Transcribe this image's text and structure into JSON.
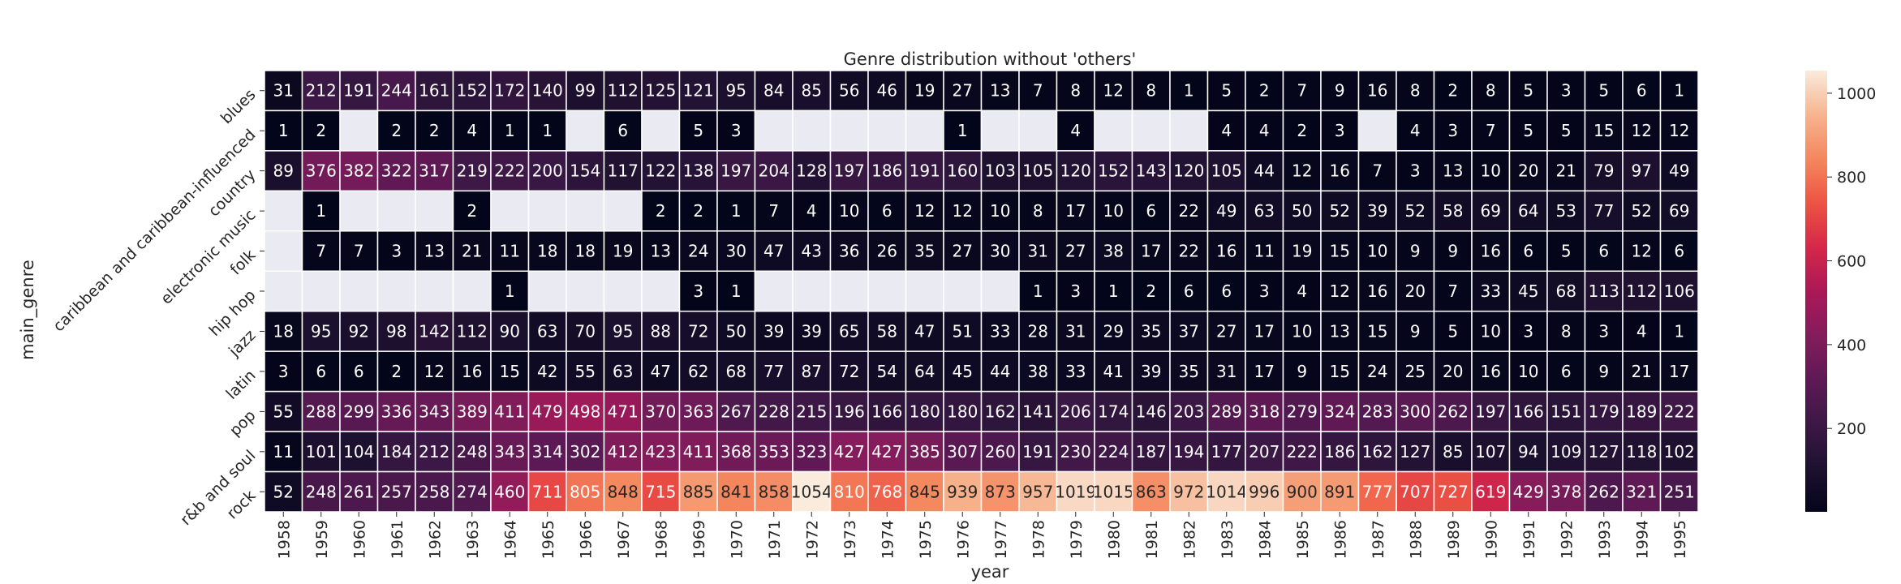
{
  "chart_data": {
    "type": "heatmap",
    "title": "Genre distribution without 'others'",
    "xlabel": "year",
    "ylabel": "main_genre",
    "x": [
      "1958",
      "1959",
      "1960",
      "1961",
      "1962",
      "1963",
      "1964",
      "1965",
      "1966",
      "1967",
      "1968",
      "1969",
      "1970",
      "1971",
      "1972",
      "1973",
      "1974",
      "1975",
      "1976",
      "1977",
      "1978",
      "1979",
      "1980",
      "1981",
      "1982",
      "1983",
      "1984",
      "1985",
      "1986",
      "1987",
      "1988",
      "1989",
      "1990",
      "1991",
      "1992",
      "1993",
      "1994",
      "1995"
    ],
    "y": [
      "blues",
      "caribbean and caribbean-influenced",
      "country",
      "electronic music",
      "folk",
      "hip hop",
      "jazz",
      "latin",
      "pop",
      "r&b and soul",
      "rock"
    ],
    "values": [
      [
        31,
        212,
        191,
        244,
        161,
        152,
        172,
        140,
        99,
        112,
        125,
        121,
        95,
        84,
        85,
        56,
        46,
        19,
        27,
        13,
        7,
        8,
        12,
        8,
        1,
        5,
        2,
        7,
        9,
        16,
        8,
        2,
        8,
        5,
        3,
        5,
        6,
        1
      ],
      [
        1,
        2,
        null,
        2,
        2,
        4,
        1,
        1,
        null,
        6,
        null,
        5,
        3,
        null,
        null,
        null,
        null,
        null,
        1,
        null,
        null,
        4,
        null,
        null,
        null,
        4,
        4,
        2,
        3,
        null,
        4,
        3,
        7,
        5,
        5,
        15,
        12,
        12
      ],
      [
        89,
        376,
        382,
        322,
        317,
        219,
        222,
        200,
        154,
        117,
        122,
        138,
        197,
        204,
        128,
        197,
        186,
        191,
        160,
        103,
        105,
        120,
        152,
        143,
        120,
        105,
        44,
        12,
        16,
        7,
        3,
        13,
        10,
        20,
        21,
        79,
        97,
        49
      ],
      [
        null,
        1,
        null,
        null,
        null,
        2,
        null,
        null,
        null,
        null,
        2,
        2,
        1,
        7,
        4,
        10,
        6,
        12,
        12,
        10,
        8,
        17,
        10,
        6,
        22,
        49,
        63,
        50,
        52,
        39,
        52,
        58,
        69,
        64,
        53,
        77,
        52,
        69
      ],
      [
        null,
        7,
        7,
        3,
        13,
        21,
        11,
        18,
        18,
        19,
        13,
        24,
        30,
        47,
        43,
        36,
        26,
        35,
        27,
        30,
        31,
        27,
        38,
        17,
        22,
        16,
        11,
        19,
        15,
        10,
        9,
        9,
        16,
        6,
        5,
        6,
        12,
        6
      ],
      [
        null,
        null,
        null,
        null,
        null,
        null,
        1,
        null,
        null,
        null,
        null,
        3,
        1,
        null,
        null,
        null,
        null,
        null,
        null,
        null,
        1,
        3,
        1,
        2,
        6,
        6,
        3,
        4,
        12,
        16,
        20,
        7,
        33,
        45,
        68,
        113,
        112,
        106
      ],
      [
        18,
        95,
        92,
        98,
        142,
        112,
        90,
        63,
        70,
        95,
        88,
        72,
        50,
        39,
        39,
        65,
        58,
        47,
        51,
        33,
        28,
        31,
        29,
        35,
        37,
        27,
        17,
        10,
        13,
        15,
        9,
        5,
        10,
        3,
        8,
        3,
        4,
        1
      ],
      [
        3,
        6,
        6,
        2,
        12,
        16,
        15,
        42,
        55,
        63,
        47,
        62,
        68,
        77,
        87,
        72,
        54,
        64,
        45,
        44,
        38,
        33,
        41,
        39,
        35,
        31,
        17,
        9,
        15,
        24,
        25,
        20,
        16,
        10,
        6,
        9,
        21,
        17
      ],
      [
        55,
        288,
        299,
        336,
        343,
        389,
        411,
        479,
        498,
        471,
        370,
        363,
        267,
        228,
        215,
        196,
        166,
        180,
        180,
        162,
        141,
        206,
        174,
        146,
        203,
        289,
        318,
        279,
        324,
        283,
        300,
        262,
        197,
        166,
        151,
        179,
        189,
        222
      ],
      [
        11,
        101,
        104,
        184,
        212,
        248,
        343,
        314,
        302,
        412,
        423,
        411,
        368,
        353,
        323,
        427,
        427,
        385,
        307,
        260,
        191,
        230,
        224,
        187,
        194,
        177,
        207,
        222,
        186,
        162,
        127,
        85,
        107,
        94,
        109,
        127,
        118,
        102
      ],
      [
        52,
        248,
        261,
        257,
        258,
        274,
        460,
        711,
        805,
        848,
        715,
        885,
        841,
        858,
        1054,
        810,
        768,
        845,
        939,
        873,
        957,
        1019,
        1015,
        863,
        972,
        1014,
        996,
        900,
        891,
        777,
        707,
        727,
        619,
        429,
        378,
        262,
        321,
        251
      ]
    ],
    "zlim": [
      1,
      1054
    ],
    "colorbar_ticks": [
      200,
      400,
      600,
      800,
      1000
    ],
    "colormap": "rocket",
    "missing_color": "#eaeaf2",
    "grid": "white cell borders",
    "legend": "colorbar right"
  }
}
